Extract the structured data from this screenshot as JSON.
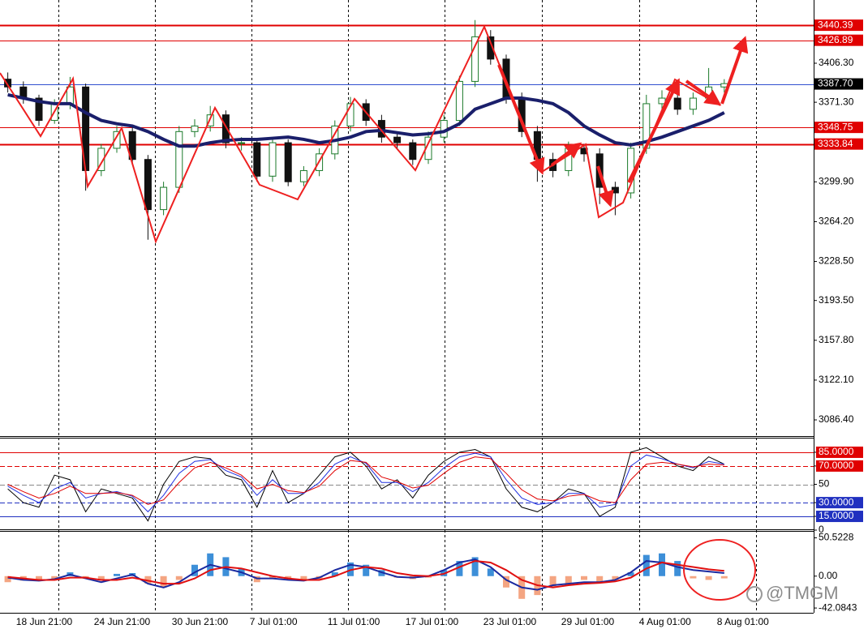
{
  "chart_data": [
    {
      "type": "candlestick",
      "categories": [
        null,
        "18 Jun 21:00",
        null,
        null,
        null,
        null,
        "24 Jun 21:00",
        null,
        null,
        null,
        null,
        "30 Jun 21:00",
        null,
        null,
        null,
        null,
        "7 Jul 01:00",
        null,
        null,
        null,
        null,
        "11 Jul 01:00",
        null,
        null,
        null,
        null,
        "17 Jul 01:00",
        null,
        null,
        null,
        null,
        "23 Jul 01:00",
        null,
        null,
        null,
        null,
        "29 Jul 01:00",
        null,
        null,
        null,
        null,
        "4 Aug 01:00",
        null,
        null,
        null,
        null,
        "8 Aug 01:00"
      ],
      "open": [
        3392,
        3385,
        3375,
        3355,
        3370,
        3385,
        3310,
        3330,
        3345,
        3320,
        3275,
        3295,
        3345,
        3350,
        3360,
        3335,
        3335,
        3305,
        3335,
        3300,
        3310,
        3325,
        3350,
        3370,
        3355,
        3340,
        3335,
        3320,
        3340,
        3355,
        3390,
        3430,
        3410,
        3375,
        3345,
        3320,
        3310,
        3330,
        3325,
        3295,
        3290,
        3330,
        3370,
        3375,
        3365,
        3375,
        3385
      ],
      "high": [
        3398,
        3390,
        3378,
        3374,
        3394,
        3388,
        3334,
        3350,
        3350,
        3324,
        3300,
        3350,
        3356,
        3368,
        3364,
        3340,
        3339,
        3340,
        3338,
        3314,
        3330,
        3355,
        3376,
        3374,
        3360,
        3345,
        3338,
        3345,
        3360,
        3395,
        3445,
        3436,
        3414,
        3380,
        3350,
        3326,
        3336,
        3334,
        3330,
        3300,
        3335,
        3378,
        3382,
        3380,
        3380,
        3402,
        3392
      ],
      "low": [
        3380,
        3370,
        3350,
        3352,
        3365,
        3292,
        3305,
        3326,
        3315,
        3248,
        3270,
        3290,
        3340,
        3345,
        3330,
        3328,
        3300,
        3300,
        3296,
        3296,
        3305,
        3320,
        3345,
        3350,
        3335,
        3330,
        3315,
        3316,
        3335,
        3350,
        3385,
        3405,
        3370,
        3340,
        3300,
        3304,
        3305,
        3318,
        3280,
        3270,
        3285,
        3325,
        3365,
        3360,
        3360,
        3370,
        3380
      ],
      "close": [
        3385,
        3375,
        3355,
        3370,
        3385,
        3310,
        3330,
        3345,
        3320,
        3275,
        3295,
        3345,
        3350,
        3360,
        3335,
        3335,
        3305,
        3335,
        3300,
        3310,
        3325,
        3350,
        3370,
        3355,
        3340,
        3335,
        3320,
        3340,
        3355,
        3390,
        3430,
        3410,
        3375,
        3345,
        3320,
        3310,
        3330,
        3325,
        3295,
        3290,
        3330,
        3370,
        3375,
        3365,
        3375,
        3385,
        3388
      ],
      "up_color": "#1b7a2a",
      "down_color": "#111111",
      "series": [
        {
          "color": "#1a1f6b",
          "values": [
            3378,
            3375,
            3372,
            3370,
            3370,
            3362,
            3355,
            3352,
            3350,
            3345,
            3338,
            3332,
            3332,
            3335,
            3337,
            3338,
            3338,
            3339,
            3340,
            3338,
            3335,
            3337,
            3340,
            3345,
            3346,
            3344,
            3342,
            3343,
            3345,
            3352,
            3365,
            3370,
            3375,
            3375,
            3373,
            3370,
            3362,
            3350,
            3342,
            3335,
            3333,
            3336,
            3340,
            3345,
            3350,
            3355,
            3362
          ]
        }
      ],
      "ylim": [
        3072.6,
        3463.0
      ],
      "yticks": [
        {
          "value": 3406.3,
          "label": "3406.30"
        },
        {
          "value": 3371.3,
          "label": "3371.30"
        },
        {
          "value": 3299.9,
          "label": "3299.90"
        },
        {
          "value": 3264.2,
          "label": "3264.20"
        },
        {
          "value": 3228.5,
          "label": "3228.50"
        },
        {
          "value": 3193.5,
          "label": "3193.50"
        },
        {
          "value": 3157.8,
          "label": "3157.80"
        },
        {
          "value": 3122.1,
          "label": "3122.10"
        },
        {
          "value": 3086.4,
          "label": "3086.40"
        }
      ],
      "levels": [
        {
          "value": 3440.39,
          "color": "#e00000",
          "box": "#e00000",
          "width": 2
        },
        {
          "value": 3426.89,
          "color": "#e00000",
          "box": "#e00000",
          "width": 1
        },
        {
          "value": 3387.7,
          "label": "3387.70",
          "color": "#3050d0",
          "box": "#000000",
          "width": 1
        },
        {
          "value": 3348.75,
          "color": "#e00000",
          "box": "#e00000",
          "width": 1
        },
        {
          "value": 3333.84,
          "color": "#e00000",
          "box": "#e00000",
          "width": 2
        }
      ]
    },
    {
      "type": "line",
      "series": [
        {
          "color": "#000000",
          "values": [
            45,
            30,
            25,
            60,
            55,
            20,
            45,
            40,
            35,
            10,
            50,
            75,
            80,
            78,
            60,
            55,
            25,
            65,
            30,
            40,
            60,
            80,
            85,
            70,
            45,
            55,
            35,
            60,
            75,
            85,
            88,
            80,
            45,
            25,
            20,
            30,
            45,
            40,
            15,
            25,
            85,
            90,
            80,
            70,
            65,
            80,
            72
          ]
        },
        {
          "color": "#2030e0",
          "values": [
            48,
            38,
            30,
            45,
            52,
            35,
            40,
            42,
            37,
            20,
            38,
            62,
            75,
            77,
            65,
            58,
            38,
            55,
            40,
            40,
            52,
            72,
            80,
            73,
            52,
            52,
            42,
            52,
            68,
            80,
            84,
            80,
            55,
            35,
            28,
            30,
            40,
            40,
            25,
            28,
            70,
            82,
            78,
            72,
            68,
            75,
            72
          ]
        },
        {
          "color": "#e00000",
          "values": [
            50,
            42,
            35,
            40,
            48,
            40,
            40,
            41,
            38,
            28,
            33,
            52,
            68,
            74,
            68,
            60,
            45,
            50,
            43,
            41,
            48,
            65,
            76,
            74,
            58,
            53,
            46,
            49,
            62,
            74,
            80,
            78,
            62,
            44,
            34,
            32,
            37,
            39,
            32,
            30,
            55,
            72,
            74,
            72,
            69,
            72,
            71
          ]
        }
      ],
      "ylim": [
        0,
        100
      ],
      "yticks": [
        {
          "value": 85,
          "label": "85.0000"
        },
        {
          "value": 70,
          "label": "70.0000"
        },
        50,
        {
          "value": 30,
          "label": "30.0000"
        },
        {
          "value": 15,
          "label": "15.0000"
        },
        0
      ],
      "levels": [
        {
          "value": 85,
          "color": "#e00000",
          "dash": false
        },
        {
          "value": 70,
          "color": "#e00000",
          "dash": true
        },
        {
          "value": 50,
          "color": "#888888",
          "dash": true
        },
        {
          "value": 30,
          "color": "#2030c0",
          "dash": true
        },
        {
          "value": 15,
          "color": "#2030c0",
          "dash": false
        }
      ]
    },
    {
      "type": "macd",
      "values": [
        -8,
        -6,
        -5,
        -4,
        5,
        -3,
        -5,
        3,
        4,
        -10,
        -15,
        -5,
        15,
        30,
        25,
        10,
        -8,
        -3,
        -5,
        -6,
        -4,
        5,
        18,
        15,
        8,
        -2,
        -4,
        -2,
        8,
        20,
        25,
        10,
        -15,
        -30,
        -25,
        -15,
        -12,
        -5,
        -8,
        -5,
        5,
        28,
        30,
        20,
        -3,
        -5,
        -3
      ],
      "pos_color": "#3d8fd8",
      "neg_color": "#f4a582",
      "series": [
        {
          "color": "#1a2aa0",
          "values": [
            -2,
            -5,
            -6,
            -4,
            2,
            -3,
            -8,
            -3,
            2,
            -10,
            -15,
            -8,
            5,
            15,
            10,
            5,
            -3,
            -3,
            -5,
            -6,
            -2,
            8,
            15,
            12,
            5,
            -1,
            -2,
            0,
            8,
            18,
            22,
            12,
            -5,
            -15,
            -18,
            -12,
            -10,
            -8,
            -8,
            -5,
            5,
            20,
            18,
            12,
            8,
            6,
            4
          ]
        },
        {
          "color": "#e01010",
          "values": [
            -1,
            -3,
            -5,
            -5,
            -2,
            -2,
            -5,
            -5,
            -2,
            -6,
            -10,
            -10,
            -3,
            8,
            12,
            10,
            5,
            0,
            -3,
            -5,
            -5,
            0,
            8,
            12,
            10,
            4,
            1,
            0,
            3,
            12,
            20,
            18,
            8,
            -5,
            -12,
            -15,
            -12,
            -10,
            -9,
            -7,
            -2,
            10,
            18,
            15,
            12,
            9,
            7
          ]
        }
      ],
      "ylim": [
        -48.4,
        58.6
      ],
      "yticks": [
        50.5228,
        {
          "value": 0,
          "label": "0.00"
        },
        -42.0843
      ]
    }
  ],
  "watermark": "@TMGM"
}
